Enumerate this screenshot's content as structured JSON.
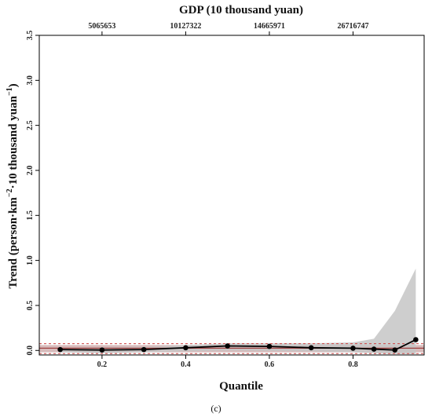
{
  "chart_data": {
    "type": "line",
    "title": "",
    "top_axis_title": "GDP (10 thousand yuan)",
    "top_axis_ticks": [
      {
        "x": 0.2,
        "label": "5065653"
      },
      {
        "x": 0.4,
        "label": "10127322"
      },
      {
        "x": 0.6,
        "label": "14665971"
      },
      {
        "x": 0.8,
        "label": "26716747"
      }
    ],
    "xlabel": "Quantile",
    "ylabel_main": "Trend (person·km",
    "ylabel_sup1": "−2",
    "ylabel_mid": "·10 thousand yuan",
    "ylabel_sup2": "−1",
    "ylabel_end": ")",
    "xlim": [
      0.05,
      0.97
    ],
    "ylim": [
      -0.05,
      3.5
    ],
    "x_ticks": [
      0.2,
      0.4,
      0.6,
      0.8
    ],
    "x_tick_labels": [
      "0.2",
      "0.4",
      "0.6",
      "0.8"
    ],
    "y_ticks": [
      0.0,
      0.5,
      1.0,
      1.5,
      2.0,
      2.5,
      3.0,
      3.5
    ],
    "y_tick_labels": [
      "0.0",
      "0.5",
      "1.0",
      "1.5",
      "2.0",
      "2.5",
      "3.0",
      "3.5"
    ],
    "series": [
      {
        "x": [
          0.1,
          0.2,
          0.3,
          0.4,
          0.5,
          0.6,
          0.7,
          0.8,
          0.85,
          0.9,
          0.95
        ],
        "values": [
          0.01,
          0.005,
          0.01,
          0.03,
          0.05,
          0.045,
          0.03,
          0.025,
          0.015,
          0.005,
          0.12
        ],
        "markers": [
          true,
          true,
          true,
          true,
          true,
          true,
          true,
          true,
          true,
          true,
          true
        ],
        "color": "#000000"
      }
    ],
    "confidence_band": {
      "x": [
        0.1,
        0.2,
        0.3,
        0.4,
        0.5,
        0.6,
        0.7,
        0.8,
        0.85,
        0.9,
        0.95
      ],
      "lower": [
        -0.02,
        -0.03,
        -0.02,
        -0.01,
        0.0,
        -0.005,
        -0.01,
        -0.02,
        -0.03,
        -0.04,
        -0.04
      ],
      "upper": [
        0.03,
        0.035,
        0.04,
        0.06,
        0.08,
        0.08,
        0.08,
        0.09,
        0.13,
        0.44,
        0.91
      ],
      "color": "#c6c6c6"
    },
    "reference_band": {
      "lower": -0.02,
      "upper": 0.06,
      "color": "#caa4a4"
    },
    "reference_line": {
      "y": 0.025,
      "color": "#a04040"
    },
    "dashed_lines": [
      {
        "y": 0.075
      },
      {
        "y": -0.035
      }
    ],
    "dashed_color": "#cc4444",
    "grid": false,
    "caption": "(c)"
  }
}
